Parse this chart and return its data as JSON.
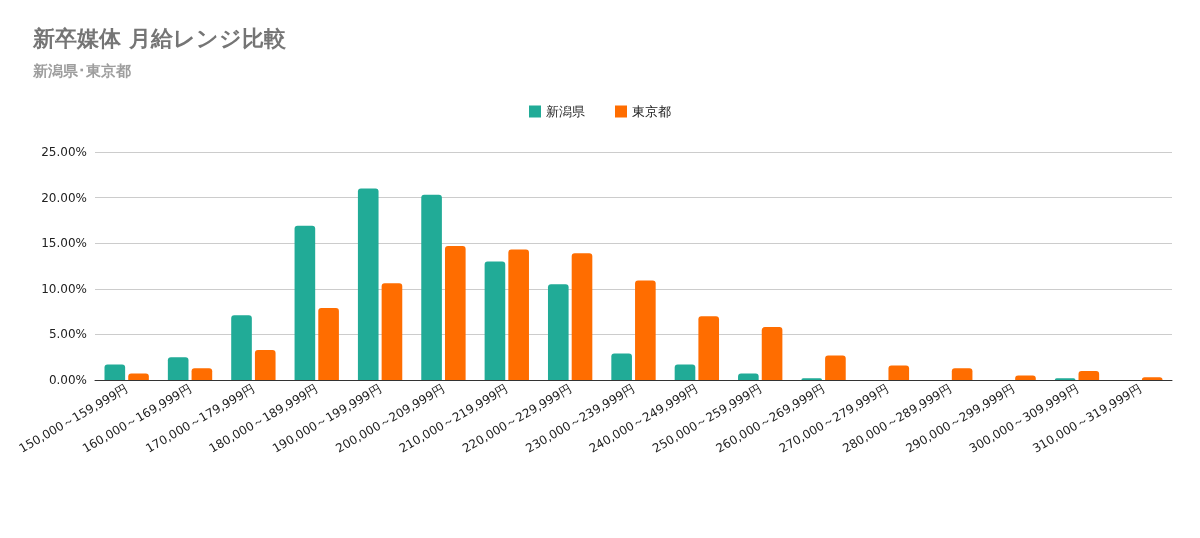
{
  "chart_data": {
    "type": "bar",
    "title": "新卒媒体 月給レンジ比較",
    "subtitle": "新潟県･東京都",
    "categories": [
      "150,000～159,999円",
      "160,000～169,999円",
      "170,000～179,999円",
      "180,000～189,999円",
      "190,000～199,999円",
      "200,000～209,999円",
      "210,000～219,999円",
      "220,000～229,999円",
      "230,000～239,999円",
      "240,000～249,999円",
      "250,000～259,999円",
      "260,000～269,999円",
      "270,000～279,999円",
      "280,000～289,999円",
      "290,000～299,999円",
      "300,000～309,999円",
      "310,000～319,999円"
    ],
    "series": [
      {
        "name": "新潟県",
        "color": "#21ab97",
        "values": [
          1.7,
          2.5,
          7.1,
          16.9,
          21.0,
          20.3,
          13.0,
          10.5,
          2.9,
          1.7,
          0.7,
          0.2,
          0,
          0,
          0,
          0.2,
          0
        ]
      },
      {
        "name": "東京都",
        "color": "#ff6d00",
        "values": [
          0.7,
          1.3,
          3.3,
          7.9,
          10.6,
          14.7,
          14.3,
          13.9,
          10.9,
          7.0,
          5.8,
          2.7,
          1.6,
          1.3,
          0.5,
          1.0,
          0.3
        ]
      }
    ],
    "ylim": [
      0,
      25
    ],
    "yticks": [
      {
        "value": 0,
        "label": "0.00%"
      },
      {
        "value": 5,
        "label": "5.00%"
      },
      {
        "value": 10,
        "label": "10.00%"
      },
      {
        "value": 15,
        "label": "15.00%"
      },
      {
        "value": 20,
        "label": "20.00%"
      },
      {
        "value": 25,
        "label": "25.00%"
      }
    ],
    "grid": "y",
    "legend": "top"
  }
}
